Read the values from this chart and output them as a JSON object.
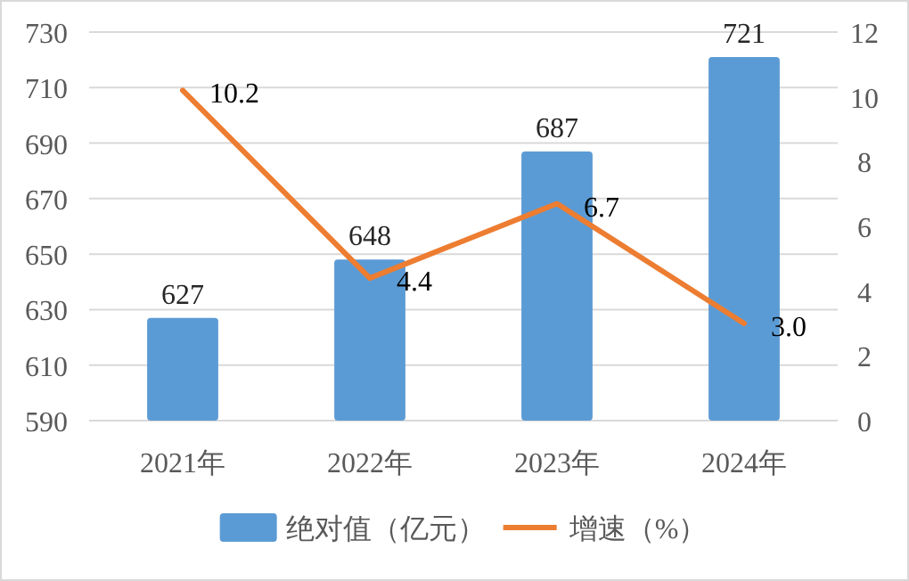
{
  "chart_data": {
    "type": "bar",
    "categories": [
      "2021年",
      "2022年",
      "2023年",
      "2024年"
    ],
    "series": [
      {
        "name": "绝对值（亿元）",
        "color": "#5b9bd5",
        "values": [
          627,
          648,
          687,
          721
        ]
      },
      {
        "name": "增速（%）",
        "type": "line",
        "axis": "y2",
        "color": "#ed7d31",
        "values": [
          10.2,
          4.4,
          6.7,
          3.0
        ],
        "value_labels": [
          "10.2",
          "4.4",
          "6.7",
          "3.0"
        ]
      }
    ],
    "data_labels": true,
    "ylim": [
      590,
      730
    ],
    "yticks": [
      590,
      610,
      630,
      650,
      670,
      690,
      710,
      730
    ],
    "y2lim": [
      0,
      12
    ],
    "y2ticks": [
      0,
      2,
      4,
      6,
      8,
      10,
      12
    ],
    "grid": "y",
    "legend": "bottom",
    "marker": "none",
    "line_style": "solid"
  }
}
